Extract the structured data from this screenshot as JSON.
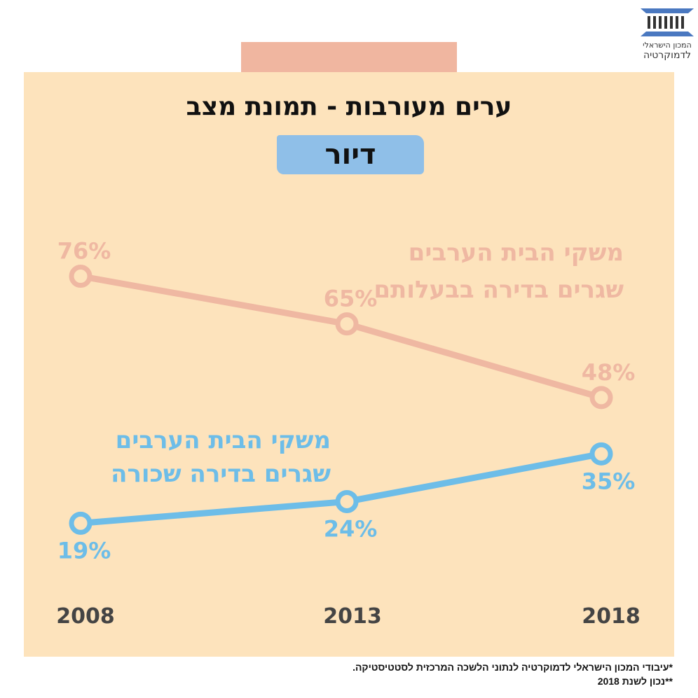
{
  "logo": {
    "line1": "המכון הישראלי",
    "line2": "לדמוקרטיה"
  },
  "title": "ערים מעורבות - תמונת מצב",
  "subtitle": "דיור",
  "chart_data": {
    "type": "line",
    "title": "ערים מעורבות - תמונת מצב",
    "subtitle": "דיור",
    "categories": [
      "2008",
      "2013",
      "2018"
    ],
    "series": [
      {
        "name_lines": [
          "משקי הבית הערבים",
          "שגרים בדירה בבעלותם"
        ],
        "values": [
          76,
          65,
          48
        ],
        "labels": [
          "76%",
          "65%",
          "48%"
        ],
        "color": "#efb8a2"
      },
      {
        "name_lines": [
          "משקי הבית הערבים",
          "שגרים בדירה שכורה"
        ],
        "values": [
          19,
          24,
          35
        ],
        "labels": [
          "19%",
          "24%",
          "35%"
        ],
        "color": "#6dbde8"
      }
    ],
    "grid": false
  },
  "colors": {
    "panel": "#fde3bc",
    "tab": "#f0b6a0",
    "year_text": "#444444"
  },
  "footnotes": [
    "*עיבודי המכון הישראלי לדמוקרטיה לנתוני הלשכה המרכזית לסטטיסטיקה.",
    "**נכון לשנת 2018"
  ]
}
